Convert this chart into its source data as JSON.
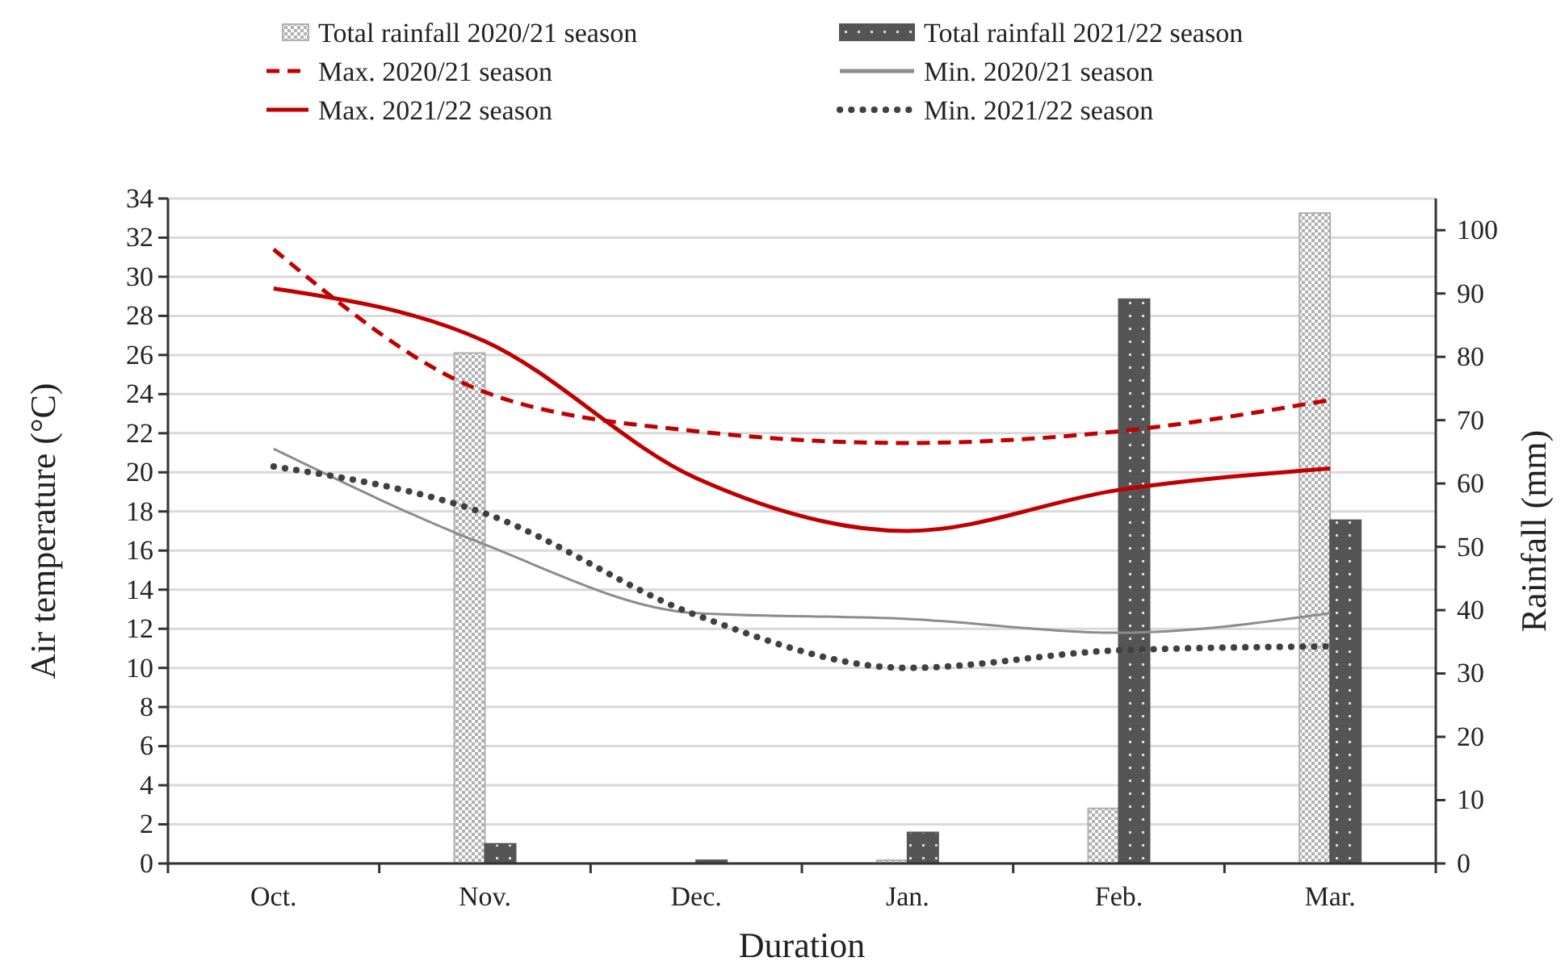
{
  "chart_data": {
    "type": "bar",
    "xlabel": "Duration",
    "ylabel": "Air temperature (°C)",
    "y2label": "Rainfall (mm)",
    "categories": [
      "Oct.",
      "Nov.",
      "Dec.",
      "Jan.",
      "Feb.",
      "Mar."
    ],
    "series": [
      {
        "name": "Total rainfall 2020/21 season",
        "axis": "y2",
        "color": "#b0b0b0",
        "values": [
          0,
          80.6,
          0,
          0.5,
          8.7,
          102.7
        ]
      },
      {
        "name": "Total rainfall 2021/22 season",
        "axis": "y2",
        "color": "#555555",
        "values": [
          0,
          3.1,
          0.5,
          4.9,
          89.1,
          54.2
        ]
      },
      {
        "name": "Max. 2020/21 season",
        "type": "line",
        "color": "#c00000",
        "line_style": "dashed",
        "values": [
          31.4,
          24.1,
          22.1,
          21.5,
          22.1,
          23.7
        ]
      },
      {
        "name": "Min. 2020/21 season",
        "type": "line",
        "color": "#8c8c8c",
        "line_style": "solid",
        "values": [
          21.2,
          16.3,
          12.8,
          12.5,
          11.8,
          12.8
        ]
      },
      {
        "name": "Max. 2021/22 season",
        "type": "line",
        "color": "#c00000",
        "line_style": "solid",
        "values": [
          29.4,
          26.7,
          19.7,
          17.0,
          19.1,
          20.2
        ]
      },
      {
        "name": "Min. 2021/22 season",
        "type": "line",
        "color": "#404040",
        "line_style": "dotted",
        "values": [
          20.3,
          17.9,
          12.7,
          10.0,
          10.9,
          11.1
        ]
      }
    ],
    "ylim": [
      0,
      34
    ],
    "yticks": [
      0,
      2,
      4,
      6,
      8,
      10,
      12,
      14,
      16,
      18,
      20,
      22,
      24,
      26,
      28,
      30,
      32,
      34
    ],
    "y2lim": [
      0,
      105
    ],
    "y2ticks": [
      0,
      10,
      20,
      30,
      40,
      50,
      60,
      70,
      80,
      90,
      100
    ],
    "grid": "y",
    "legend": "top"
  }
}
